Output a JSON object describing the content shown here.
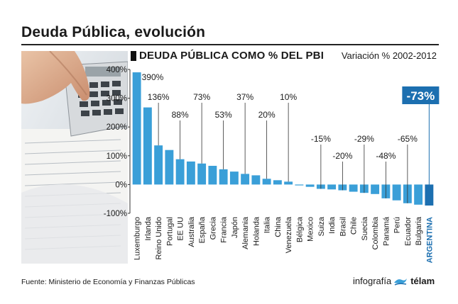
{
  "header": {
    "title": "Deuda Pública, evolución"
  },
  "footer": {
    "source": "Fuente: Ministerio de Economía y Finanzas Públicas",
    "credit_prefix": "infografía",
    "credit_agency": "télam"
  },
  "colors": {
    "bar": "#3a9fd8",
    "highlight": "#1c6fb0",
    "text": "#1a1a1a"
  },
  "chart_data": {
    "type": "bar",
    "title": "DEUDA PÚBLICA COMO % DEL PBI",
    "subtitle": "Variación % 2002-2012",
    "xlabel": "",
    "ylabel": "",
    "ylim": [
      -100,
      400
    ],
    "yticks": [
      -100,
      0,
      100,
      200,
      300,
      400
    ],
    "ytick_labels": [
      "-100%",
      "0%",
      "100%",
      "200%",
      "300%",
      "400%"
    ],
    "grid": false,
    "categories": [
      "Luxemburgo",
      "Irlanda",
      "Reino Unido",
      "Portugal",
      "EE UU",
      "Australia",
      "España",
      "Grecia",
      "Francia",
      "Japón",
      "Alemania",
      "Holanda",
      "Italia",
      "China",
      "Venezuela",
      "Bélgica",
      "Mexico",
      "Suiza",
      "India",
      "Brasil",
      "Chile",
      "Suecia",
      "Colombia",
      "Panamá",
      "Perú",
      "Ecuador",
      "Bulgaria",
      "ARGENTINA"
    ],
    "values": [
      390,
      268,
      136,
      120,
      88,
      80,
      73,
      65,
      53,
      45,
      37,
      32,
      20,
      15,
      10,
      -3,
      -8,
      -15,
      -17,
      -20,
      -25,
      -29,
      -33,
      -48,
      -55,
      -65,
      -70,
      -73
    ],
    "highlight": "ARGENTINA",
    "annotations": [
      {
        "category": "Luxemburgo",
        "label": "390%"
      },
      {
        "category": "Reino Unido",
        "label": "136%"
      },
      {
        "category": "EE UU",
        "label": "88%"
      },
      {
        "category": "España",
        "label": "73%"
      },
      {
        "category": "Francia",
        "label": "53%"
      },
      {
        "category": "Alemania",
        "label": "37%"
      },
      {
        "category": "Italia",
        "label": "20%"
      },
      {
        "category": "Venezuela",
        "label": "10%"
      },
      {
        "category": "Suiza",
        "label": "-15%"
      },
      {
        "category": "Brasil",
        "label": "-20%"
      },
      {
        "category": "Suecia",
        "label": "-29%"
      },
      {
        "category": "Panamá",
        "label": "-48%"
      },
      {
        "category": "Ecuador",
        "label": "-65%"
      },
      {
        "category": "ARGENTINA",
        "label": "-73%"
      }
    ]
  }
}
